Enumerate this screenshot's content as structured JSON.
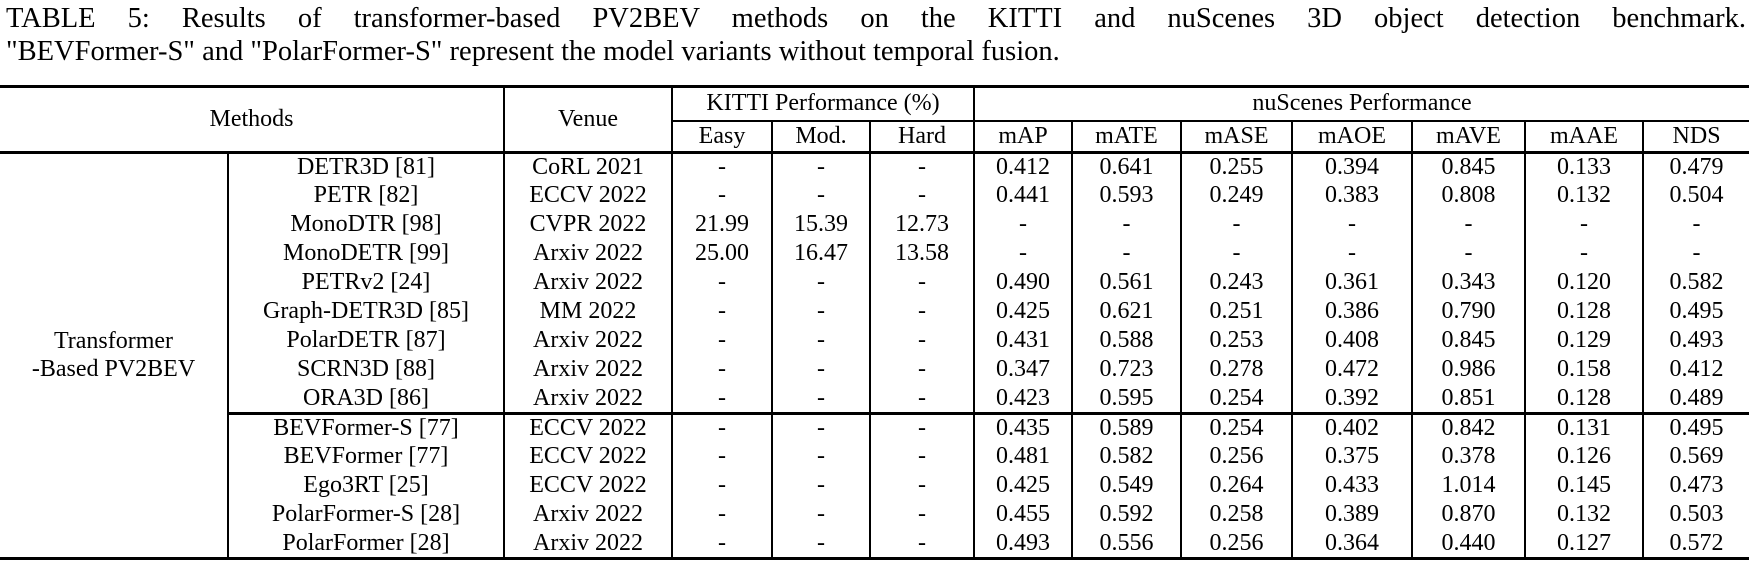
{
  "caption": {
    "line1": "TABLE 5: Results of transformer-based PV2BEV methods on the KITTI and nuScenes 3D object detection benchmark.",
    "line2": "\"BEVFormer-S\" and \"PolarFormer-S\" represent the model variants without temporal fusion."
  },
  "table": {
    "headers": {
      "methods": "Methods",
      "venue": "Venue",
      "kitti": "KITTI Performance (%)",
      "kitti_sub": [
        "Easy",
        "Mod.",
        "Hard"
      ],
      "nuscenes": "nuScenes Performance",
      "nuscenes_sub": [
        "mAP",
        "mATE",
        "mASE",
        "mAOE",
        "mAVE",
        "mAAE",
        "NDS"
      ]
    },
    "group_label_lines": [
      "Transformer",
      "-Based PV2BEV"
    ],
    "rows": [
      {
        "section": 1,
        "method": "DETR3D [81]",
        "venue": "CoRL 2021",
        "easy": "-",
        "mod": "-",
        "hard": "-",
        "map": "0.412",
        "mate": "0.641",
        "mase": "0.255",
        "maoe": "0.394",
        "mave": "0.845",
        "maae": "0.133",
        "nds": "0.479"
      },
      {
        "section": 1,
        "method": "PETR [82]",
        "venue": "ECCV 2022",
        "easy": "-",
        "mod": "-",
        "hard": "-",
        "map": "0.441",
        "mate": "0.593",
        "mase": "0.249",
        "maoe": "0.383",
        "mave": "0.808",
        "maae": "0.132",
        "nds": "0.504"
      },
      {
        "section": 1,
        "method": "MonoDTR [98]",
        "venue": "CVPR 2022",
        "easy": "21.99",
        "mod": "15.39",
        "hard": "12.73",
        "map": "-",
        "mate": "-",
        "mase": "-",
        "maoe": "-",
        "mave": "-",
        "maae": "-",
        "nds": "-"
      },
      {
        "section": 1,
        "method": "MonoDETR [99]",
        "venue": "Arxiv 2022",
        "easy": "25.00",
        "mod": "16.47",
        "hard": "13.58",
        "map": "-",
        "mate": "-",
        "mase": "-",
        "maoe": "-",
        "mave": "-",
        "maae": "-",
        "nds": "-"
      },
      {
        "section": 1,
        "method": "PETRv2 [24]",
        "venue": "Arxiv 2022",
        "easy": "-",
        "mod": "-",
        "hard": "-",
        "map": "0.490",
        "mate": "0.561",
        "mase": "0.243",
        "maoe": "0.361",
        "mave": "0.343",
        "maae": "0.120",
        "nds": "0.582"
      },
      {
        "section": 1,
        "method": "Graph-DETR3D [85]",
        "venue": "MM 2022",
        "easy": "-",
        "mod": "-",
        "hard": "-",
        "map": "0.425",
        "mate": "0.621",
        "mase": "0.251",
        "maoe": "0.386",
        "mave": "0.790",
        "maae": "0.128",
        "nds": "0.495"
      },
      {
        "section": 1,
        "method": "PolarDETR [87]",
        "venue": "Arxiv 2022",
        "easy": "-",
        "mod": "-",
        "hard": "-",
        "map": "0.431",
        "mate": "0.588",
        "mase": "0.253",
        "maoe": "0.408",
        "mave": "0.845",
        "maae": "0.129",
        "nds": "0.493"
      },
      {
        "section": 1,
        "method": "SCRN3D [88]",
        "venue": "Arxiv 2022",
        "easy": "-",
        "mod": "-",
        "hard": "-",
        "map": "0.347",
        "mate": "0.723",
        "mase": "0.278",
        "maoe": "0.472",
        "mave": "0.986",
        "maae": "0.158",
        "nds": "0.412"
      },
      {
        "section": 1,
        "method": "ORA3D [86]",
        "venue": "Arxiv 2022",
        "easy": "-",
        "mod": "-",
        "hard": "-",
        "map": "0.423",
        "mate": "0.595",
        "mase": "0.254",
        "maoe": "0.392",
        "mave": "0.851",
        "maae": "0.128",
        "nds": "0.489"
      },
      {
        "section": 2,
        "method": "BEVFormer-S [77]",
        "venue": "ECCV 2022",
        "easy": "-",
        "mod": "-",
        "hard": "-",
        "map": "0.435",
        "mate": "0.589",
        "mase": "0.254",
        "maoe": "0.402",
        "mave": "0.842",
        "maae": "0.131",
        "nds": "0.495"
      },
      {
        "section": 2,
        "method": "BEVFormer [77]",
        "venue": "ECCV 2022",
        "easy": "-",
        "mod": "-",
        "hard": "-",
        "map": "0.481",
        "mate": "0.582",
        "mase": "0.256",
        "maoe": "0.375",
        "mave": "0.378",
        "maae": "0.126",
        "nds": "0.569"
      },
      {
        "section": 2,
        "method": "Ego3RT [25]",
        "venue": "ECCV 2022",
        "easy": "-",
        "mod": "-",
        "hard": "-",
        "map": "0.425",
        "mate": "0.549",
        "mase": "0.264",
        "maoe": "0.433",
        "mave": "1.014",
        "maae": "0.145",
        "nds": "0.473"
      },
      {
        "section": 2,
        "method": "PolarFormer-S [28]",
        "venue": "Arxiv 2022",
        "easy": "-",
        "mod": "-",
        "hard": "-",
        "map": "0.455",
        "mate": "0.592",
        "mase": "0.258",
        "maoe": "0.389",
        "mave": "0.870",
        "maae": "0.132",
        "nds": "0.503"
      },
      {
        "section": 2,
        "method": "PolarFormer [28]",
        "venue": "Arxiv 2022",
        "easy": "-",
        "mod": "-",
        "hard": "-",
        "map": "0.493",
        "mate": "0.556",
        "mase": "0.256",
        "maoe": "0.364",
        "mave": "0.440",
        "maae": "0.127",
        "nds": "0.572"
      }
    ]
  }
}
